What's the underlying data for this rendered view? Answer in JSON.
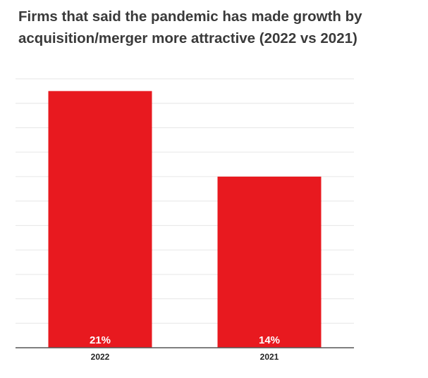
{
  "chart_data": {
    "type": "bar",
    "title_lines": [
      "Firms that said the pandemic has made growth by",
      "acquisition/merger more attractive (2022 vs 2021)"
    ],
    "categories": [
      "2022",
      "2021"
    ],
    "values": [
      21,
      14
    ],
    "data_labels": [
      "21%",
      "14%"
    ],
    "xlabel": "",
    "ylabel": "",
    "ylim": [
      0,
      22
    ],
    "grid": true,
    "legend": "none",
    "bar_color": "#e8191f"
  }
}
